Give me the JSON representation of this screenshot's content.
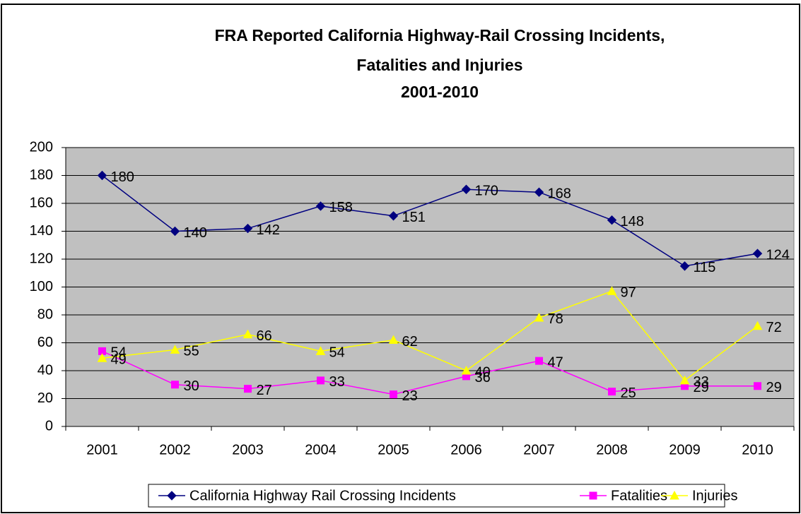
{
  "chart_data": {
    "type": "line",
    "title": [
      "FRA Reported California Highway-Rail Crossing Incidents,",
      "Fatalities and Injuries",
      "2001-2010"
    ],
    "categories": [
      "2001",
      "2002",
      "2003",
      "2004",
      "2005",
      "2006",
      "2007",
      "2008",
      "2009",
      "2010"
    ],
    "series": [
      {
        "name": "California Highway Rail Crossing Incidents",
        "color": "#000080",
        "marker": "diamond",
        "values": [
          180,
          140,
          142,
          158,
          151,
          170,
          168,
          148,
          115,
          124
        ]
      },
      {
        "name": "Fatalities",
        "color": "#FF00FF",
        "marker": "square",
        "values": [
          54,
          30,
          27,
          33,
          23,
          36,
          47,
          25,
          29,
          29
        ]
      },
      {
        "name": "Injuries",
        "color": "#FFFF00",
        "marker": "triangle",
        "values": [
          49,
          55,
          66,
          54,
          62,
          40,
          78,
          97,
          33,
          72
        ]
      }
    ],
    "ylim": [
      0,
      200
    ],
    "yticks": [
      0,
      20,
      40,
      60,
      80,
      100,
      120,
      140,
      160,
      180,
      200
    ],
    "grid": true,
    "legend": "bottom",
    "plot_background": "#C0C0C0"
  }
}
